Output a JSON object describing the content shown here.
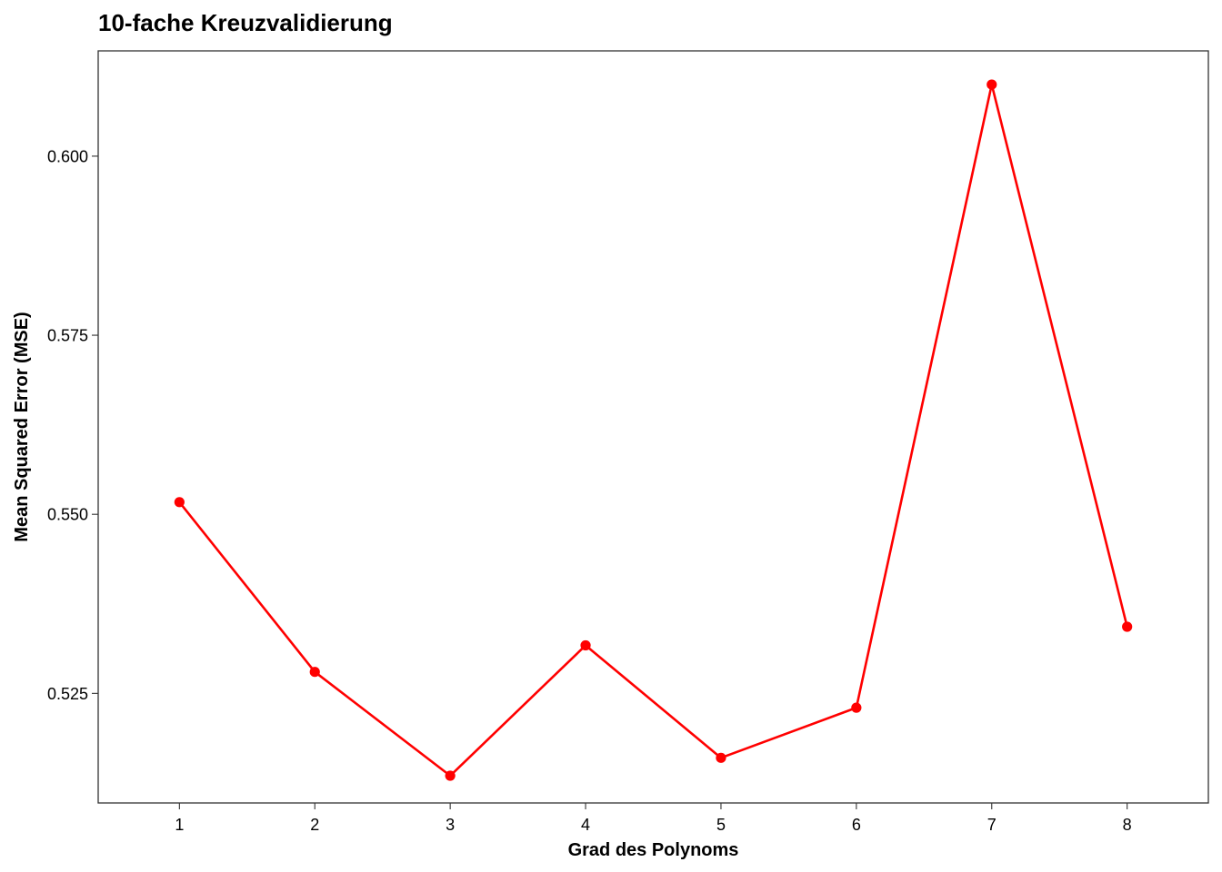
{
  "chart_data": {
    "type": "line",
    "title": "10-fache Kreuzvalidierung",
    "xlabel": "Grad des Polynoms",
    "ylabel": "Mean Squared Error (MSE)",
    "x": [
      1,
      2,
      3,
      4,
      5,
      6,
      7,
      8
    ],
    "x_ticks": [
      "1",
      "2",
      "3",
      "4",
      "5",
      "6",
      "7",
      "8"
    ],
    "xlim": [
      0.4,
      8.6
    ],
    "y": [
      0.5517,
      0.528,
      0.5135,
      0.5317,
      0.516,
      0.523,
      0.61,
      0.5343
    ],
    "y_ticks": [
      0.525,
      0.55,
      0.575,
      0.6
    ],
    "y_tick_labels": [
      "0.525",
      "0.550",
      "0.575",
      "0.600"
    ],
    "ylim": [
      0.5097,
      0.6147
    ],
    "grid": false,
    "legend": "none",
    "color": "#ff0000"
  }
}
